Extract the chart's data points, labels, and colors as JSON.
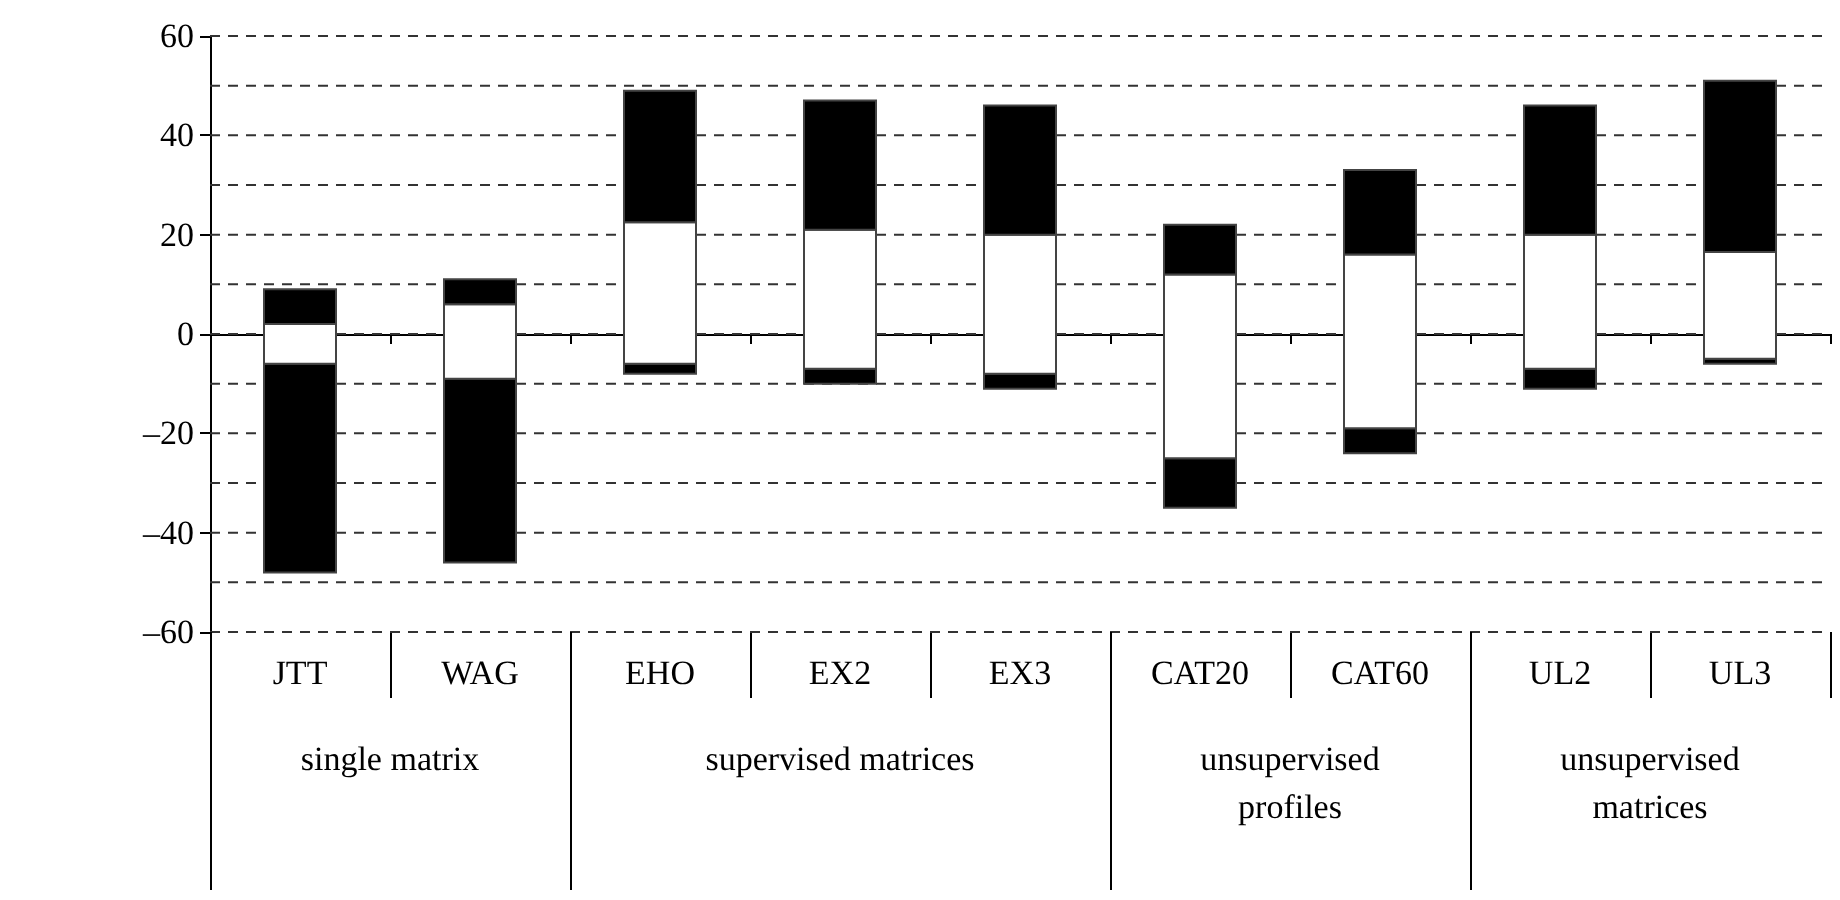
{
  "chart_data": {
    "type": "bar",
    "categories": [
      "JTT",
      "WAG",
      "EHO",
      "EX2",
      "EX3",
      "CAT20",
      "CAT60",
      "UL2",
      "UL3"
    ],
    "series": [
      {
        "color": "#000000",
        "base": [
          -48,
          -46,
          -8,
          -10,
          -11,
          -35,
          -24,
          -11,
          -6
        ],
        "values": [
          42,
          37,
          2,
          3,
          3,
          10,
          5,
          4,
          1
        ]
      },
      {
        "color": "#ffffff",
        "base": [
          -6,
          -9,
          -6,
          -7,
          -8,
          -25,
          -19,
          -7,
          -5
        ],
        "values": [
          8,
          15,
          28.5,
          28,
          28,
          37,
          35,
          27,
          21.5
        ]
      },
      {
        "color": "#000000",
        "base": [
          2,
          6,
          22.5,
          21,
          20,
          12,
          16,
          20,
          16.5
        ],
        "values": [
          7,
          5,
          26.5,
          26,
          26,
          10,
          17,
          26,
          34.5
        ]
      }
    ],
    "ylim": [
      -60,
      60
    ],
    "yticks": [
      {
        "value": -60,
        "label": "–60"
      },
      {
        "value": -50,
        "label": null
      },
      {
        "value": -40,
        "label": "–40"
      },
      {
        "value": -30,
        "label": null
      },
      {
        "value": -20,
        "label": "–20"
      },
      {
        "value": -10,
        "label": null
      },
      0,
      {
        "value": 10,
        "label": null
      },
      20,
      {
        "value": 30,
        "label": null
      },
      40,
      {
        "value": 50,
        "label": null
      },
      60
    ],
    "grid": true,
    "annotations": [
      "single matrix",
      "supervised matrices",
      "unsupervised profiles",
      "unsupervised matrices"
    ]
  }
}
